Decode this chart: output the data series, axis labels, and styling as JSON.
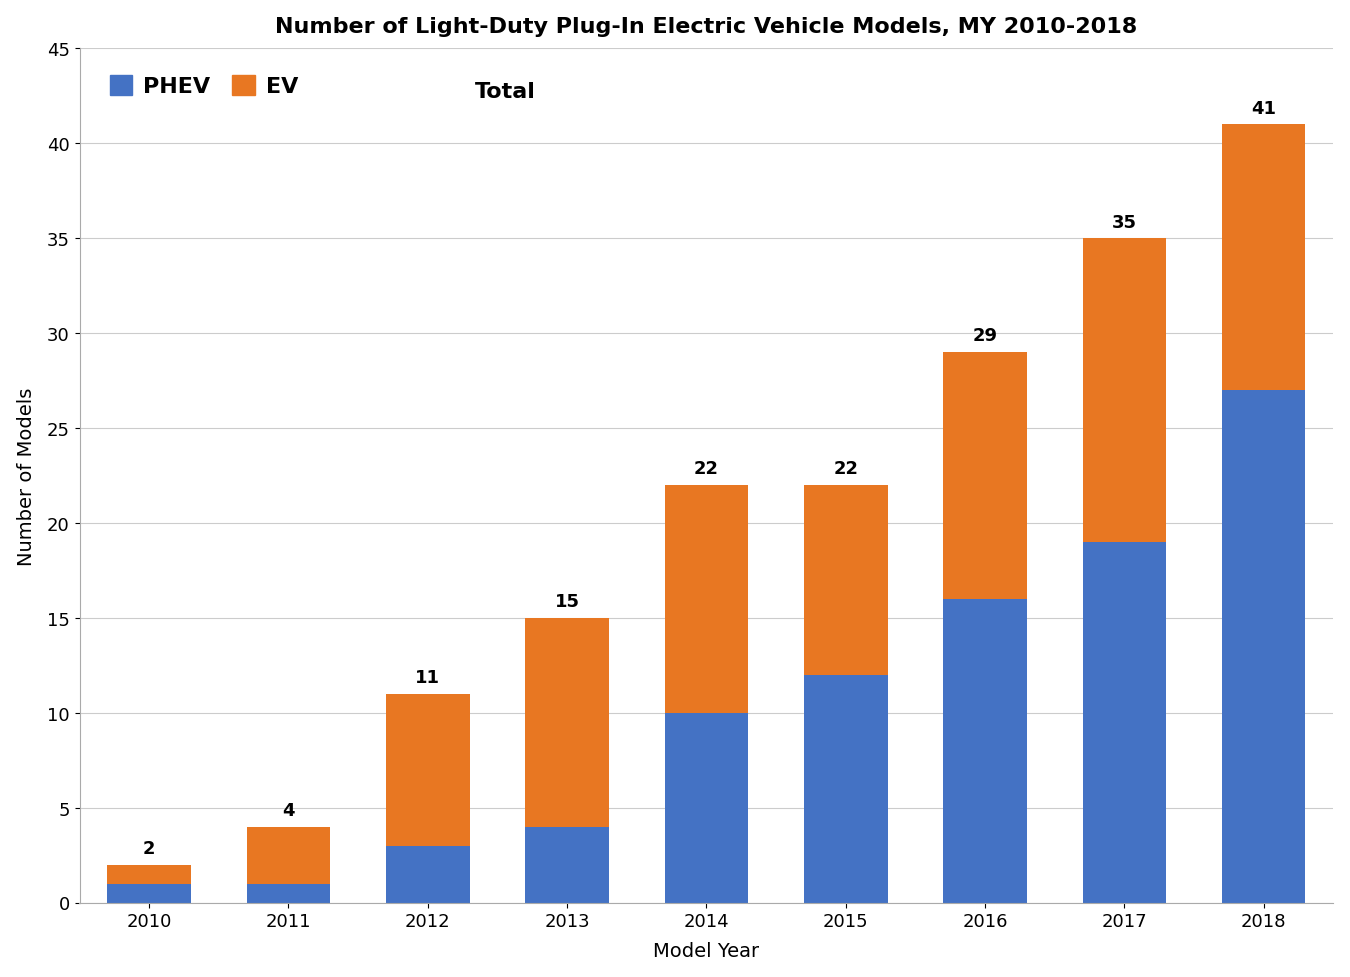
{
  "title": "Number of Light-Duty Plug-In Electric Vehicle Models, MY 2010-2018",
  "xlabel": "Model Year",
  "ylabel": "Number of Models",
  "years": [
    2010,
    2011,
    2012,
    2013,
    2014,
    2015,
    2016,
    2017,
    2018
  ],
  "phev": [
    1,
    1,
    3,
    4,
    10,
    12,
    16,
    19,
    27
  ],
  "ev": [
    1,
    3,
    8,
    11,
    12,
    10,
    13,
    16,
    14
  ],
  "totals": [
    2,
    4,
    11,
    15,
    22,
    22,
    29,
    35,
    41
  ],
  "phev_color": "#4472C4",
  "ev_color": "#E87722",
  "ylim": [
    0,
    45
  ],
  "yticks": [
    0,
    5,
    10,
    15,
    20,
    25,
    30,
    35,
    40,
    45
  ],
  "title_fontsize": 16,
  "label_fontsize": 14,
  "tick_fontsize": 13,
  "legend_fontsize": 16,
  "annotation_fontsize": 13,
  "bar_width": 0.6,
  "background_color": "#ffffff",
  "grid_color": "#cccccc"
}
